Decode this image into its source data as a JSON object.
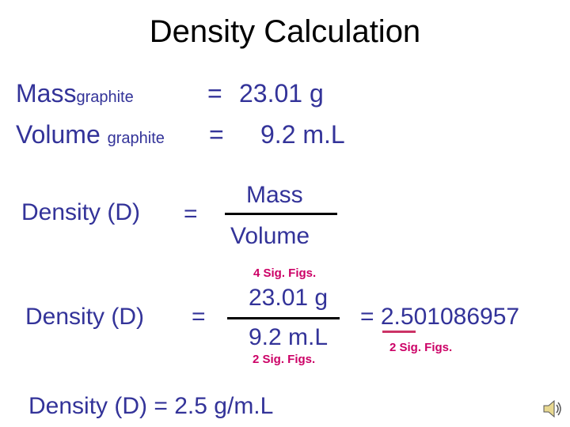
{
  "title": "Density Calculation",
  "given": {
    "mass": {
      "label": "Mass",
      "subscript": "graphite",
      "equals": "=",
      "value": "23.01 g"
    },
    "volume": {
      "label": "Volume",
      "subscript": "graphite",
      "equals": "=",
      "value": "9.2 m.L"
    }
  },
  "formula": {
    "lhs": "Density (D)",
    "equals": "=",
    "numerator": "Mass",
    "denominator": "Volume"
  },
  "calculation": {
    "lhs": "Density (D)",
    "equals": "=",
    "numerator_note": "4 Sig. Figs.",
    "numerator": "23.01 g",
    "denominator": "9.2 m.L",
    "denominator_note": "2 Sig. Figs.",
    "result_equals": "=",
    "result_kept": "2.5",
    "result_rest": "01086957",
    "result_note": "2 Sig. Figs."
  },
  "answer": {
    "lhs": "Density (D)",
    "equals": "=",
    "value": "2.5",
    "unit": "g/m.L"
  },
  "colors": {
    "heading": "#000000",
    "text_blue": "#333399",
    "note_pink": "#cc0066"
  },
  "icons": {
    "audio": "speaker-icon"
  }
}
